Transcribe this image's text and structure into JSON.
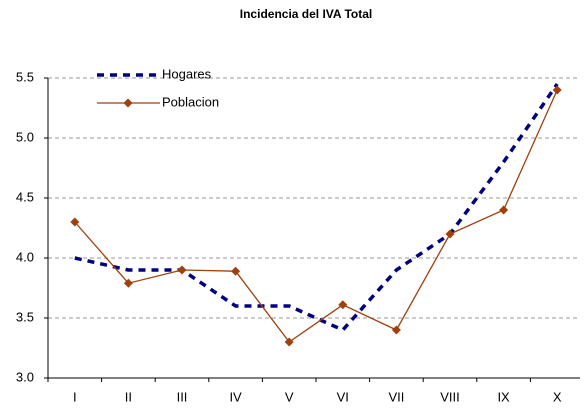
{
  "chart_data": {
    "type": "line",
    "title": "Incidencia del IVA Total",
    "categories": [
      "I",
      "II",
      "III",
      "IV",
      "V",
      "VI",
      "VII",
      "VIII",
      "IX",
      "X"
    ],
    "series": [
      {
        "name": "Hogares",
        "color": "#000080",
        "dashed": true,
        "marker": false,
        "values": [
          4.0,
          3.9,
          3.9,
          3.6,
          3.6,
          3.4,
          3.9,
          4.2,
          4.8,
          5.45
        ]
      },
      {
        "name": "Poblacion",
        "color": "#a0410d",
        "dashed": false,
        "marker": true,
        "values": [
          4.3,
          3.79,
          3.9,
          3.89,
          3.3,
          3.61,
          3.4,
          4.2,
          4.4,
          5.4
        ]
      }
    ],
    "ylim": [
      3.0,
      5.5
    ],
    "yticks": [
      {
        "value": 3,
        "label": "3.0"
      },
      3.5,
      {
        "value": 4,
        "label": "4.0"
      },
      4.5,
      {
        "value": 5,
        "label": "5.0"
      },
      5.5
    ],
    "grid": true,
    "legend": "top-left"
  }
}
